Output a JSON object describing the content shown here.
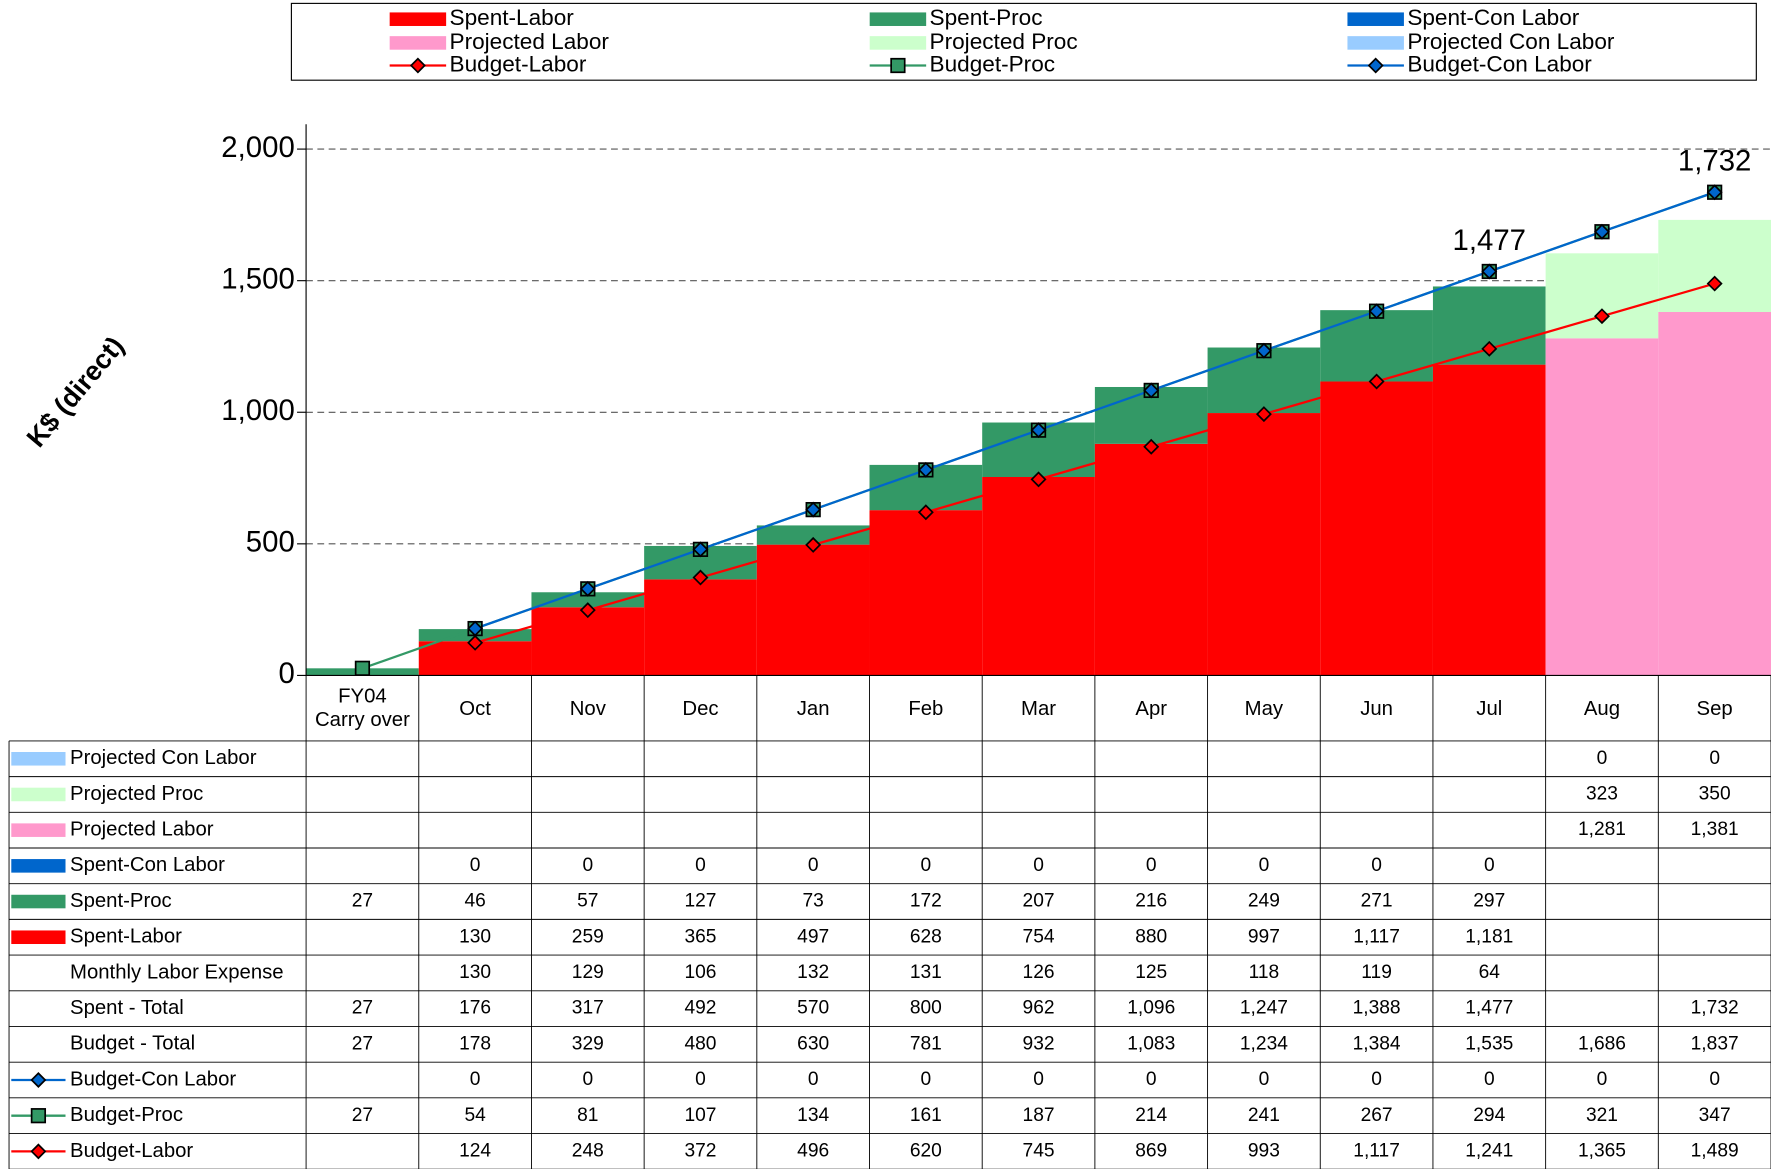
{
  "chart_data": {
    "type": "bar",
    "stacked": true,
    "y_label": "K$ (direct)",
    "categories": [
      "FY04\nCarry over",
      "Oct",
      "Nov",
      "Dec",
      "Jan",
      "Feb",
      "Mar",
      "Apr",
      "May",
      "Jun",
      "Jul",
      "Aug",
      "Sep"
    ],
    "ylim": [
      0,
      2000
    ],
    "yticks": [
      0,
      500,
      {
        "value": 1000,
        "label": "1,000"
      },
      {
        "value": 1500,
        "label": "1,500"
      },
      {
        "value": 2000,
        "label": "2,000"
      }
    ],
    "grid": true,
    "legend": "top",
    "series": [
      {
        "name": "Spent-Labor",
        "kind": "bar",
        "color": "#ff0000",
        "values": [
          null,
          130,
          259,
          365,
          497,
          628,
          754,
          880,
          997,
          1117,
          1181,
          null,
          null
        ],
        "value_labels": [
          null,
          "130",
          "259",
          "365",
          "497",
          "628",
          "754",
          "880",
          "997",
          "1,117",
          "1,181",
          null,
          null
        ]
      },
      {
        "name": "Spent-Proc",
        "kind": "bar",
        "color": "#339966",
        "values": [
          27,
          46,
          57,
          127,
          73,
          172,
          207,
          216,
          249,
          271,
          297,
          null,
          null
        ]
      },
      {
        "name": "Spent-Con Labor",
        "kind": "bar",
        "color": "#0066cc",
        "values": [
          null,
          0,
          0,
          0,
          0,
          0,
          0,
          0,
          0,
          0,
          0,
          null,
          null
        ]
      },
      {
        "name": "Projected Labor",
        "kind": "bar",
        "color": "#ff99cc",
        "values": [
          null,
          null,
          null,
          null,
          null,
          null,
          null,
          null,
          null,
          null,
          null,
          1281,
          1381
        ],
        "value_labels": [
          null,
          null,
          null,
          null,
          null,
          null,
          null,
          null,
          null,
          null,
          null,
          "1,281",
          "1,381"
        ]
      },
      {
        "name": "Projected Proc",
        "kind": "bar",
        "color": "#ccffcc",
        "values": [
          null,
          null,
          null,
          null,
          null,
          null,
          null,
          null,
          null,
          null,
          null,
          323,
          350
        ]
      },
      {
        "name": "Projected Con Labor",
        "kind": "bar",
        "color": "#99ccff",
        "values": [
          null,
          null,
          null,
          null,
          null,
          null,
          null,
          null,
          null,
          null,
          null,
          0,
          0
        ]
      },
      {
        "name": "Budget-Labor",
        "kind": "line",
        "color": "#ff0000",
        "marker": "diamond",
        "values": [
          null,
          124,
          248,
          372,
          496,
          620,
          745,
          869,
          993,
          1117,
          1241,
          1365,
          1489
        ],
        "value_labels": [
          null,
          "124",
          "248",
          "372",
          "496",
          "620",
          "745",
          "869",
          "993",
          "1,117",
          "1,241",
          "1,365",
          "1,489"
        ]
      },
      {
        "name": "Budget-Proc",
        "kind": "line",
        "color": "#339966",
        "marker": "square",
        "values": [
          27,
          54,
          81,
          107,
          134,
          161,
          187,
          214,
          241,
          267,
          294,
          321,
          347
        ]
      },
      {
        "name": "Budget-Con Labor",
        "kind": "line",
        "color": "#0066cc",
        "marker": "diamond",
        "values": [
          null,
          0,
          0,
          0,
          0,
          0,
          0,
          0,
          0,
          0,
          0,
          0,
          0
        ]
      }
    ],
    "table_rows": [
      {
        "name": "Monthly Labor Expense",
        "values": [
          null,
          130,
          129,
          106,
          132,
          131,
          126,
          125,
          118,
          119,
          64,
          null,
          null
        ]
      },
      {
        "name": "Spent - Total",
        "values": [
          27,
          176,
          317,
          492,
          570,
          800,
          962,
          1096,
          1247,
          1388,
          1477,
          null,
          1732
        ],
        "value_labels": [
          "27",
          "176",
          "317",
          "492",
          "570",
          "800",
          "962",
          "1,096",
          "1,247",
          "1,388",
          "1,477",
          null,
          "1,732"
        ]
      },
      {
        "name": "Budget - Total",
        "values": [
          27,
          178,
          329,
          480,
          630,
          781,
          932,
          1083,
          1234,
          1384,
          1535,
          1686,
          1837
        ],
        "value_labels": [
          "27",
          "178",
          "329",
          "480",
          "630",
          "781",
          "932",
          "1,083",
          "1,234",
          "1,384",
          "1,535",
          "1,686",
          "1,837"
        ]
      }
    ],
    "annotations": [
      {
        "text": "1,477",
        "category": "Jul"
      },
      {
        "text": "1,732",
        "category": "Sep"
      }
    ]
  }
}
